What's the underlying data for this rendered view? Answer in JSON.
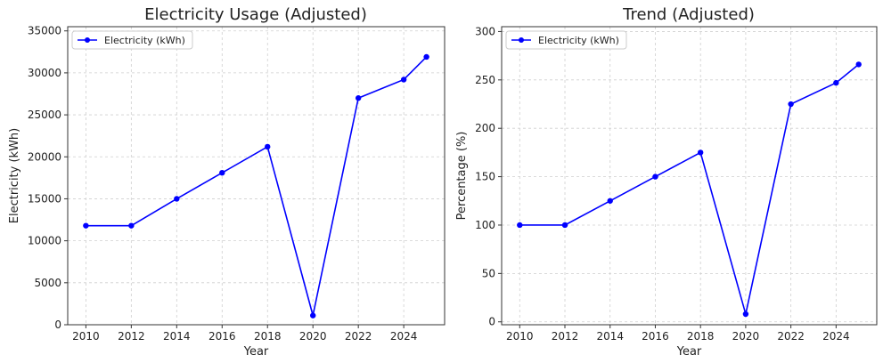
{
  "chart_data": [
    {
      "type": "line",
      "title": "Electricity Usage (Adjusted)",
      "xlabel": "Year",
      "ylabel": "Electricity (kWh)",
      "x": [
        2010,
        2012,
        2014,
        2016,
        2018,
        2020,
        2022,
        2024,
        2025
      ],
      "series": [
        {
          "name": "Electricity (kWh)",
          "color": "#0000ff",
          "values": [
            11800,
            11800,
            15000,
            18100,
            21200,
            1100,
            27000,
            29200,
            31900
          ]
        }
      ],
      "xticks": [
        "2010",
        "2012",
        "2014",
        "2016",
        "2018",
        "2020",
        "2022",
        "2024"
      ],
      "yticks": [
        "0",
        "5000",
        "10000",
        "15000",
        "20000",
        "25000",
        "30000",
        "35000"
      ],
      "xlim": [
        2009.2,
        2025.8
      ],
      "ylim": [
        0,
        35500
      ],
      "grid": true,
      "legend": "top-left"
    },
    {
      "type": "line",
      "title": "Trend (Adjusted)",
      "xlabel": "Year",
      "ylabel": "Percentage (%)",
      "x": [
        2010,
        2012,
        2014,
        2016,
        2018,
        2020,
        2022,
        2024,
        2025
      ],
      "series": [
        {
          "name": "Electricity (kWh)",
          "color": "#0000ff",
          "values": [
            100,
            100,
            125,
            150,
            175,
            8,
            225,
            247,
            266
          ]
        }
      ],
      "xticks": [
        "2010",
        "2012",
        "2014",
        "2016",
        "2018",
        "2020",
        "2022",
        "2024"
      ],
      "yticks": [
        "0",
        "50",
        "100",
        "150",
        "200",
        "250",
        "300"
      ],
      "xlim": [
        2009.2,
        2025.8
      ],
      "ylim": [
        -3,
        305
      ],
      "grid": true,
      "legend": "top-left"
    }
  ]
}
